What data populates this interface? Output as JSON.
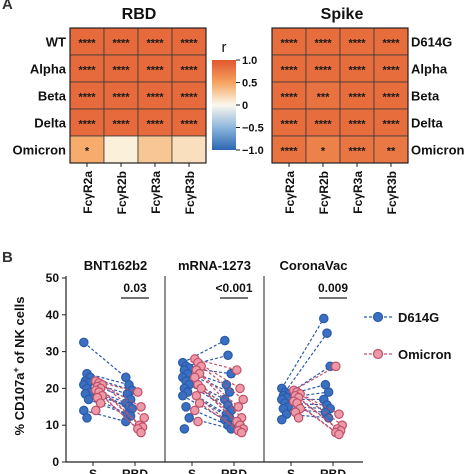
{
  "chart_data": [
    {
      "type": "heatmap",
      "panel_label": "A",
      "title": "RBD",
      "rows": [
        "WT",
        "Alpha",
        "Beta",
        "Delta",
        "Omicron"
      ],
      "columns": [
        "FcγR2a",
        "FcγR2b",
        "FcγR3a",
        "FcγR3b"
      ],
      "r_values": [
        [
          0.87,
          0.87,
          0.87,
          0.87
        ],
        [
          0.87,
          0.87,
          0.87,
          0.87
        ],
        [
          0.87,
          0.87,
          0.87,
          0.87
        ],
        [
          0.87,
          0.87,
          0.87,
          0.87
        ],
        [
          0.45,
          0.05,
          0.3,
          0.15
        ]
      ],
      "significance": [
        [
          "****",
          "****",
          "****",
          "****"
        ],
        [
          "****",
          "****",
          "****",
          "****"
        ],
        [
          "****",
          "****",
          "****",
          "****"
        ],
        [
          "****",
          "****",
          "****",
          "****"
        ],
        [
          "*",
          "",
          "",
          ""
        ]
      ]
    },
    {
      "type": "heatmap",
      "title": "Spike",
      "rows": [
        "D614G",
        "Alpha",
        "Beta",
        "Delta",
        "Omicron"
      ],
      "columns": [
        "FcγR2a",
        "FcγR2b",
        "FcγR3a",
        "FcγR3b"
      ],
      "r_values": [
        [
          0.85,
          0.85,
          0.85,
          0.85
        ],
        [
          0.85,
          0.85,
          0.85,
          0.85
        ],
        [
          0.85,
          0.82,
          0.85,
          0.85
        ],
        [
          0.85,
          0.85,
          0.85,
          0.85
        ],
        [
          0.82,
          0.72,
          0.8,
          0.78
        ]
      ],
      "significance": [
        [
          "****",
          "****",
          "****",
          "****"
        ],
        [
          "****",
          "****",
          "****",
          "****"
        ],
        [
          "****",
          "***",
          "****",
          "****"
        ],
        [
          "****",
          "****",
          "****",
          "****"
        ],
        [
          "****",
          "*",
          "****",
          "**"
        ]
      ],
      "colorbar": {
        "label": "r",
        "range": [
          -1.0,
          1.0
        ],
        "ticks": [
          "1.0",
          "0.5",
          "0",
          "−0.5",
          "−1.0"
        ],
        "tick_values": [
          1.0,
          0.5,
          0,
          -0.5,
          -1.0
        ]
      }
    },
    {
      "type": "scatter",
      "panel_label": "B",
      "ylabel_parts": [
        "% CD107a",
        "+",
        " of NK cells"
      ],
      "ylim": [
        0,
        50
      ],
      "yticks": [
        "0",
        "10",
        "20",
        "30",
        "40",
        "50"
      ],
      "ytick_values": [
        0,
        10,
        20,
        30,
        40,
        50
      ],
      "xticks": [
        "S",
        "RBD"
      ],
      "legend": {
        "position": "right",
        "items": [
          "D614G",
          "Omicron"
        ]
      },
      "series_colors": {
        "D614G": "#2b5ba8",
        "Omicron": "#e9909c"
      },
      "groups": [
        {
          "title": "BNT162b2",
          "p_value": "0.03",
          "S_D614G": [
            32.5,
            24,
            23,
            22,
            21.5,
            21,
            20,
            19,
            18.5,
            17,
            14,
            12
          ],
          "S_Omicron": [
            22,
            21.5,
            21,
            20.5,
            20,
            19.5,
            19,
            18,
            17.5,
            16,
            14
          ],
          "RBD_D614G": [
            23,
            21,
            19.5,
            18.5,
            17,
            16,
            15,
            14.5,
            13,
            12.5,
            11
          ],
          "RBD_Omicron": [
            19,
            15,
            12,
            10,
            9.5,
            9,
            8
          ]
        },
        {
          "title": "mRNA-1273",
          "p_value": "<0.001",
          "S_D614G": [
            27,
            26,
            25.5,
            25,
            24,
            23,
            22,
            21,
            20,
            19,
            18,
            15,
            12,
            9
          ],
          "S_Omicron": [
            28,
            27,
            26,
            25,
            24,
            23,
            21,
            20,
            18,
            16,
            14,
            11
          ],
          "RBD_D614G": [
            33,
            29,
            24,
            21,
            19,
            17,
            15.5,
            14,
            13,
            12,
            11.5,
            10,
            9
          ],
          "RBD_Omicron": [
            25,
            20,
            17,
            15,
            12,
            11,
            10,
            9,
            8.5,
            8
          ]
        },
        {
          "title": "CoronaVac",
          "p_value": "0.009",
          "S_D614G": [
            20,
            19,
            18.5,
            18,
            17.5,
            17,
            16,
            15,
            14.5,
            13,
            11.5
          ],
          "S_Omicron": [
            19.5,
            19,
            18.5,
            18,
            17.5,
            16.5,
            16,
            14.5,
            13.5,
            12
          ],
          "RBD_D614G": [
            39,
            35,
            26,
            21,
            19,
            17,
            15.5,
            14.5,
            13.5,
            12
          ],
          "RBD_Omicron": [
            26,
            13,
            10,
            9,
            8.5,
            8,
            7.5
          ]
        }
      ]
    }
  ]
}
